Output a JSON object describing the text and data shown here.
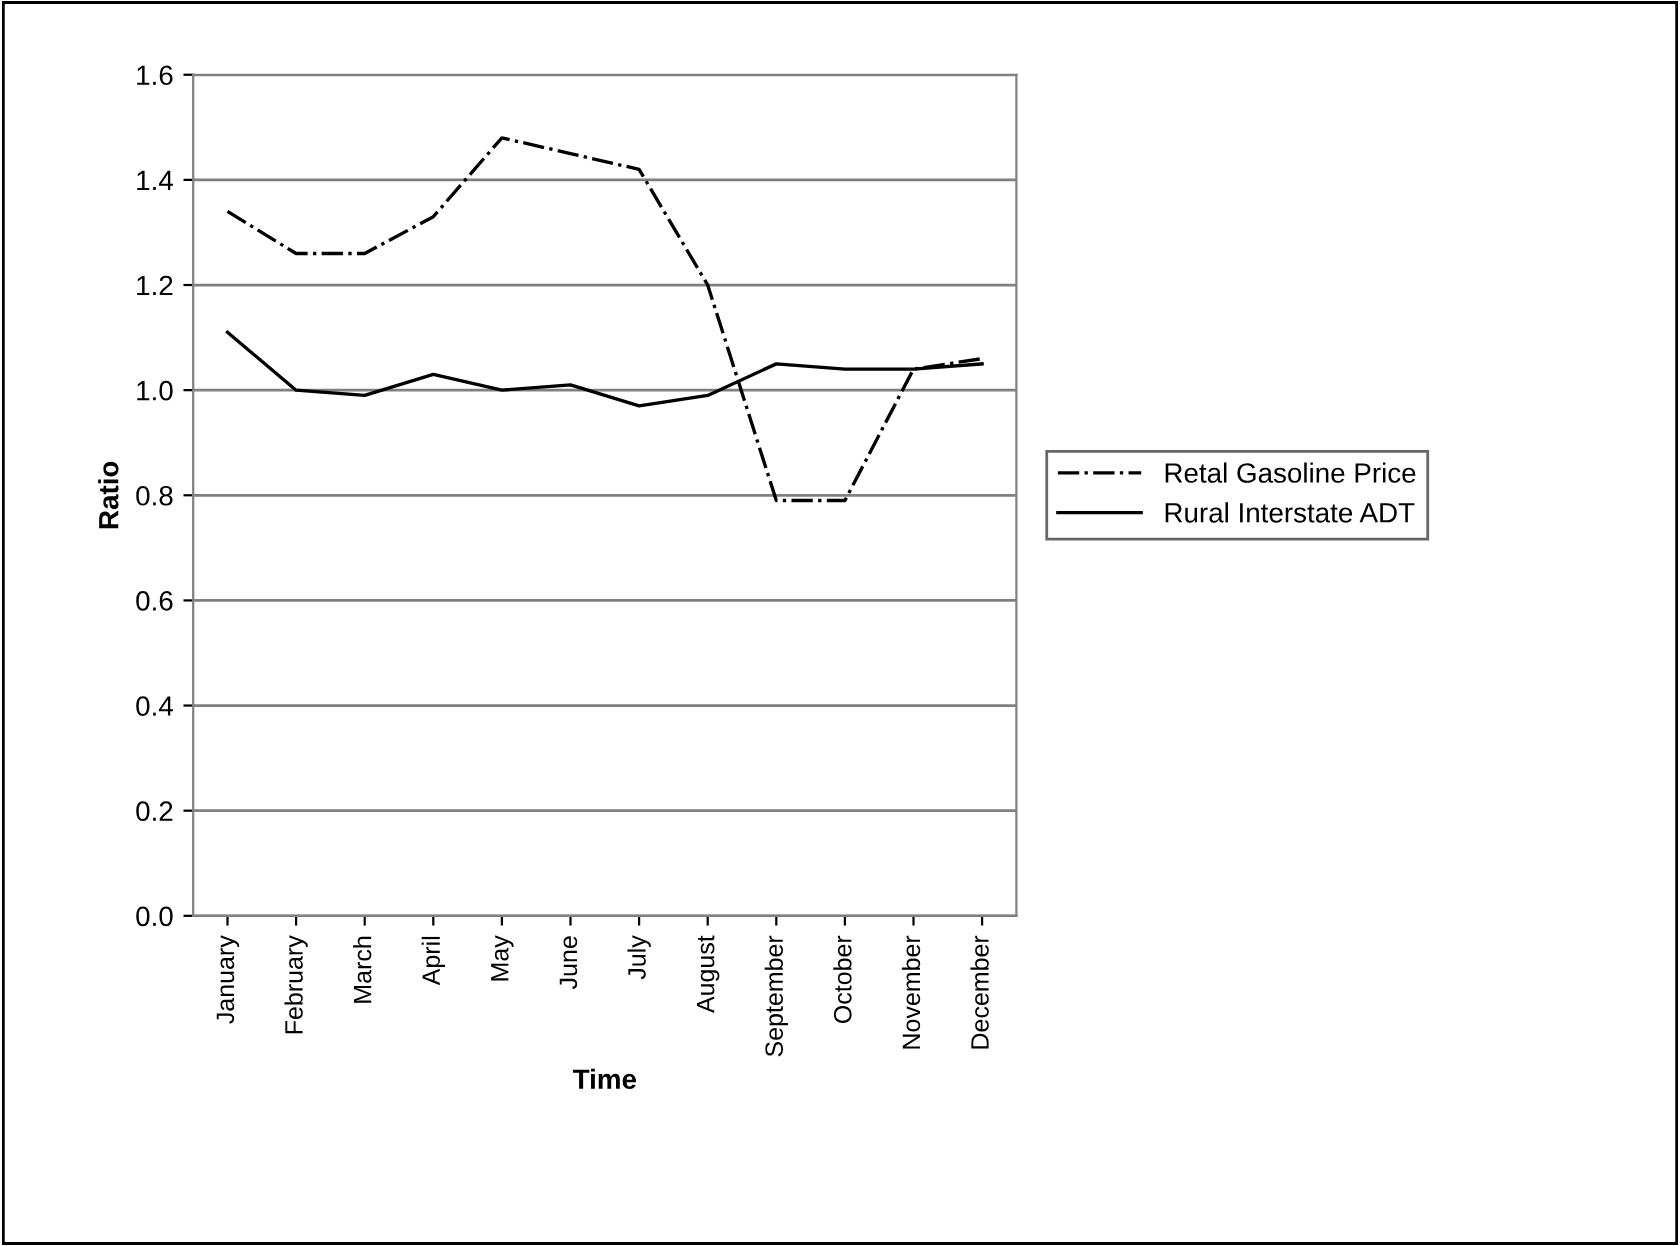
{
  "chart_data": {
    "type": "line",
    "xlabel": "Time",
    "ylabel": "Ratio",
    "categories": [
      "January",
      "February",
      "March",
      "April",
      "May",
      "June",
      "July",
      "August",
      "September",
      "October",
      "November",
      "December"
    ],
    "series": [
      {
        "name": "Retal Gasoline Price",
        "color": "#000000",
        "line_style": "dashdot",
        "values": [
          1.34,
          1.26,
          1.26,
          1.33,
          1.48,
          1.45,
          1.42,
          1.2,
          0.79,
          0.79,
          1.04,
          1.06
        ]
      },
      {
        "name": "Rural Interstate ADT",
        "color": "#000000",
        "line_style": "solid",
        "values": [
          1.11,
          1.0,
          0.99,
          1.03,
          1.0,
          1.01,
          0.97,
          0.99,
          1.05,
          1.04,
          1.04,
          1.05
        ]
      }
    ],
    "ylim": [
      0,
      1.6
    ],
    "yticks": [
      {
        "value": 0,
        "label": "0.0"
      },
      {
        "value": 0.2,
        "label": "0.2"
      },
      {
        "value": 0.4,
        "label": "0.4"
      },
      {
        "value": 0.6,
        "label": "0.6"
      },
      {
        "value": 0.8,
        "label": "0.8"
      },
      {
        "value": 1.0,
        "label": "1.0"
      },
      {
        "value": 1.2,
        "label": "1.2"
      },
      {
        "value": 1.4,
        "label": "1.4"
      },
      {
        "value": 1.6,
        "label": "1.6"
      }
    ],
    "grid": "y",
    "legend": "right",
    "marker": "none"
  }
}
